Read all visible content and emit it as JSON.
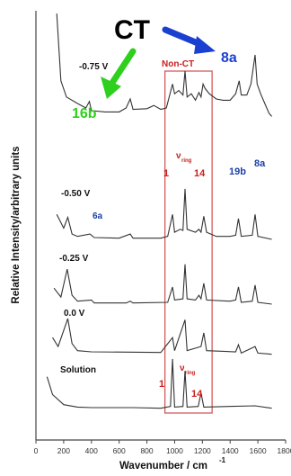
{
  "chart_data": {
    "type": "line",
    "xlabel": "Wavenumber / cm",
    "xlabel_superscript": "-1",
    "ylabel": "Relative Intensity/arbitrary units",
    "xlim": [
      0,
      1800
    ],
    "xticks": [
      "0",
      "200",
      "400",
      "600",
      "800",
      "1000",
      "1200",
      "1400",
      "1600",
      "1800"
    ],
    "series": [
      {
        "name": "-0.75 V",
        "points": [
          [
            150,
            1.1
          ],
          [
            180,
            0.6
          ],
          [
            220,
            0.35
          ],
          [
            300,
            0.25
          ],
          [
            360,
            0.18
          ],
          [
            385,
            0.28
          ],
          [
            400,
            0.14
          ],
          [
            500,
            0.12
          ],
          [
            600,
            0.12
          ],
          [
            650,
            0.18
          ],
          [
            680,
            0.32
          ],
          [
            700,
            0.16
          ],
          [
            800,
            0.17
          ],
          [
            850,
            0.22
          ],
          [
            900,
            0.16
          ],
          [
            940,
            0.18
          ],
          [
            985,
            0.55
          ],
          [
            1000,
            0.4
          ],
          [
            1030,
            0.45
          ],
          [
            1060,
            0.38
          ],
          [
            1075,
            0.75
          ],
          [
            1090,
            0.35
          ],
          [
            1120,
            0.4
          ],
          [
            1150,
            0.3
          ],
          [
            1175,
            0.42
          ],
          [
            1190,
            0.35
          ],
          [
            1205,
            0.55
          ],
          [
            1220,
            0.48
          ],
          [
            1250,
            0.4
          ],
          [
            1300,
            0.32
          ],
          [
            1350,
            0.3
          ],
          [
            1400,
            0.3
          ],
          [
            1440,
            0.4
          ],
          [
            1465,
            0.6
          ],
          [
            1480,
            0.38
          ],
          [
            1520,
            0.38
          ],
          [
            1550,
            0.55
          ],
          [
            1580,
            1.0
          ],
          [
            1595,
            0.55
          ],
          [
            1620,
            0.4
          ],
          [
            1650,
            0.25
          ],
          [
            1680,
            0.1
          ],
          [
            1700,
            0.05
          ]
        ]
      },
      {
        "name": "-0.50 V",
        "points": [
          [
            150,
            0.45
          ],
          [
            200,
            0.22
          ],
          [
            230,
            0.4
          ],
          [
            260,
            0.12
          ],
          [
            300,
            0.08
          ],
          [
            390,
            0.12
          ],
          [
            420,
            0.06
          ],
          [
            600,
            0.05
          ],
          [
            680,
            0.12
          ],
          [
            700,
            0.05
          ],
          [
            900,
            0.05
          ],
          [
            950,
            0.08
          ],
          [
            985,
            0.45
          ],
          [
            1000,
            0.15
          ],
          [
            1040,
            0.2
          ],
          [
            1060,
            0.18
          ],
          [
            1075,
            0.88
          ],
          [
            1090,
            0.2
          ],
          [
            1150,
            0.15
          ],
          [
            1175,
            0.2
          ],
          [
            1190,
            0.15
          ],
          [
            1210,
            0.42
          ],
          [
            1230,
            0.15
          ],
          [
            1300,
            0.08
          ],
          [
            1400,
            0.08
          ],
          [
            1440,
            0.1
          ],
          [
            1460,
            0.38
          ],
          [
            1480,
            0.08
          ],
          [
            1560,
            0.1
          ],
          [
            1580,
            0.45
          ],
          [
            1600,
            0.08
          ],
          [
            1700,
            0.03
          ]
        ]
      },
      {
        "name": "-0.25 V",
        "points": [
          [
            130,
            0.3
          ],
          [
            180,
            0.15
          ],
          [
            225,
            0.62
          ],
          [
            260,
            0.18
          ],
          [
            300,
            0.08
          ],
          [
            400,
            0.1
          ],
          [
            420,
            0.05
          ],
          [
            650,
            0.05
          ],
          [
            680,
            0.08
          ],
          [
            700,
            0.05
          ],
          [
            950,
            0.06
          ],
          [
            985,
            0.32
          ],
          [
            1000,
            0.1
          ],
          [
            1060,
            0.12
          ],
          [
            1075,
            0.7
          ],
          [
            1090,
            0.12
          ],
          [
            1150,
            0.1
          ],
          [
            1175,
            0.18
          ],
          [
            1190,
            0.12
          ],
          [
            1210,
            0.38
          ],
          [
            1230,
            0.1
          ],
          [
            1400,
            0.08
          ],
          [
            1440,
            0.1
          ],
          [
            1460,
            0.32
          ],
          [
            1480,
            0.06
          ],
          [
            1560,
            0.08
          ],
          [
            1580,
            0.35
          ],
          [
            1600,
            0.06
          ],
          [
            1700,
            0.03
          ]
        ]
      },
      {
        "name": "0.0 V",
        "points": [
          [
            120,
            0.3
          ],
          [
            160,
            0.15
          ],
          [
            230,
            0.62
          ],
          [
            260,
            0.2
          ],
          [
            300,
            0.08
          ],
          [
            400,
            0.06
          ],
          [
            900,
            0.05
          ],
          [
            985,
            0.3
          ],
          [
            1000,
            0.08
          ],
          [
            1075,
            0.6
          ],
          [
            1090,
            0.08
          ],
          [
            1190,
            0.15
          ],
          [
            1210,
            0.38
          ],
          [
            1230,
            0.08
          ],
          [
            1440,
            0.06
          ],
          [
            1460,
            0.18
          ],
          [
            1480,
            0.04
          ],
          [
            1580,
            0.15
          ],
          [
            1600,
            0.04
          ],
          [
            1700,
            0.02
          ]
        ]
      },
      {
        "name": "Solution",
        "points": [
          [
            80,
            0.55
          ],
          [
            120,
            0.25
          ],
          [
            200,
            0.08
          ],
          [
            300,
            0.04
          ],
          [
            400,
            0.03
          ],
          [
            700,
            0.03
          ],
          [
            900,
            0.02
          ],
          [
            970,
            0.05
          ],
          [
            985,
            0.85
          ],
          [
            1000,
            0.04
          ],
          [
            1060,
            0.05
          ],
          [
            1075,
            0.65
          ],
          [
            1090,
            0.04
          ],
          [
            1170,
            0.05
          ],
          [
            1190,
            0.28
          ],
          [
            1210,
            0.04
          ],
          [
            1580,
            0.06
          ],
          [
            1700,
            0.02
          ]
        ]
      }
    ],
    "annotations": {
      "ct": "CT",
      "non_ct": "Non-CT",
      "label_8a_top": "8a",
      "label_16b": "16b",
      "label_6a": "6a",
      "label_1": "1",
      "label_nu": "ν",
      "label_ring": "ring",
      "label_14": "14",
      "label_19b": "19b",
      "label_8a": "8a",
      "label_1_solution": "1",
      "label_nu_solution": "ν",
      "label_ring_solution": "ring",
      "label_14_solution": "14"
    },
    "colors": {
      "axis": "#444444",
      "trace": "#333333",
      "ct_arrow_right": "#1a3fd1",
      "ct_arrow_left": "#2fcf1d",
      "red_label": "#c81e1e",
      "blue_label": "#1b3fa7",
      "green_label": "#2fcf1d",
      "box": "#d45a5a"
    }
  }
}
